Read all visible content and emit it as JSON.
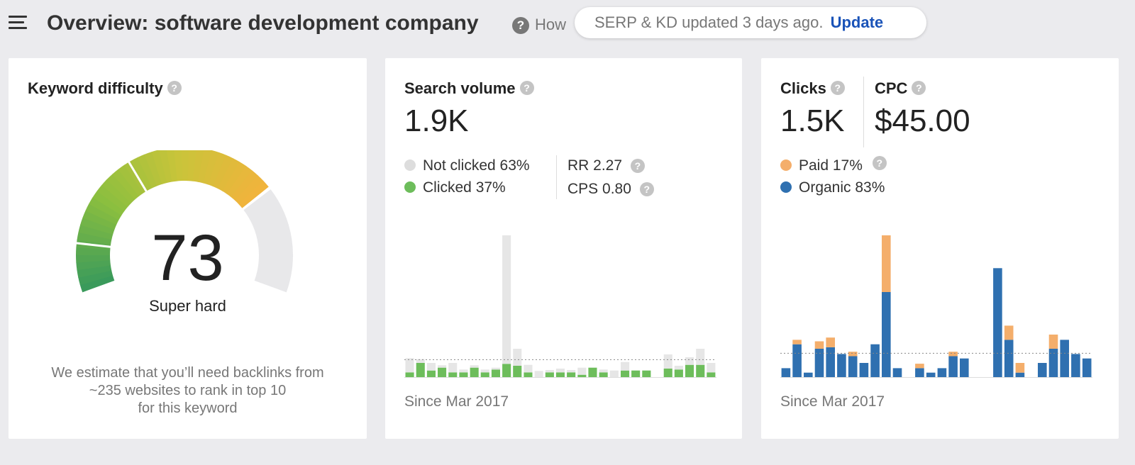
{
  "header": {
    "title": "Overview: software development company",
    "howto_label": "How",
    "update_text": "SERP & KD updated 3 days ago.",
    "update_link": "Update"
  },
  "keyword_difficulty": {
    "title": "Keyword difficulty",
    "value": "73",
    "label": "Super hard",
    "score_fraction": 0.73,
    "desc_line1": "We estimate that you’ll need backlinks from",
    "desc_line2": "~235 websites to rank in top 10",
    "desc_line3": "for this keyword",
    "colors": {
      "green_dark": "#3a9a5b",
      "green": "#8bbf3f",
      "yellow": "#c9c43a",
      "orange": "#f0b43c",
      "rest": "#e8e8ea"
    }
  },
  "search_volume": {
    "title": "Search volume",
    "value": "1.9K",
    "legend": [
      {
        "label": "Not clicked 63%",
        "color": "#dddddd"
      },
      {
        "label": "Clicked 37%",
        "color": "#6dbd5b"
      }
    ],
    "rr": "RR 2.27",
    "cps": "CPS 0.80",
    "since": "Since Mar 2017",
    "chart_data": {
      "type": "bar",
      "stacked": true,
      "series": [
        {
          "name": "Clicked",
          "color": "#6dbd5b",
          "values": [
            1,
            3,
            1.4,
            2,
            1,
            1,
            2,
            1,
            1.6,
            2.8,
            2.4,
            1,
            0,
            1,
            1,
            1,
            0.5,
            2,
            1,
            0,
            1.4,
            1.4,
            1.4,
            0,
            1.8,
            1.6,
            2.6,
            2.6,
            1
          ]
        },
        {
          "name": "Not clicked",
          "color": "#e6e6e6",
          "values": [
            3,
            0.8,
            1.6,
            0.5,
            2,
            0.6,
            0.5,
            0.6,
            0.4,
            27.2,
            3.6,
            1.6,
            1.3,
            0.5,
            0.8,
            0.5,
            1.5,
            0,
            0.6,
            1.4,
            1.8,
            0,
            0,
            0,
            3,
            0.8,
            1.6,
            3.4,
            2
          ]
        }
      ],
      "ylim": [
        0,
        30
      ],
      "average_line": 3.7
    }
  },
  "clicks": {
    "title": "Clicks",
    "value": "1.5K",
    "cpc_title": "CPC",
    "cpc_value": "$45.00",
    "legend": [
      {
        "label": "Paid 17%",
        "color": "#f4ae6b"
      },
      {
        "label": "Organic 83%",
        "color": "#2f70b0"
      }
    ],
    "since": "Since Mar 2017",
    "chart_data": {
      "type": "bar",
      "stacked": true,
      "series": [
        {
          "name": "Organic",
          "color": "#2f70b0",
          "values": [
            1.2,
            4.4,
            0.6,
            3.8,
            4,
            3.1,
            2.8,
            1.9,
            4.4,
            11.4,
            1.2,
            0,
            1.2,
            0.6,
            1.2,
            2.8,
            2.5,
            0,
            0,
            14.6,
            5,
            0.6,
            0,
            1.9,
            3.8,
            5,
            3.1,
            2.5
          ]
        },
        {
          "name": "Paid",
          "color": "#f4ae6b",
          "values": [
            0,
            0.6,
            0,
            1,
            1.3,
            0,
            0.6,
            0,
            0,
            7.6,
            0,
            0,
            0.6,
            0,
            0,
            0.6,
            0,
            0,
            0,
            0,
            1.9,
            1.3,
            0,
            0,
            1.9,
            0,
            0,
            0
          ]
        }
      ],
      "ylim": [
        0,
        19
      ],
      "average_line": 3.2
    }
  }
}
